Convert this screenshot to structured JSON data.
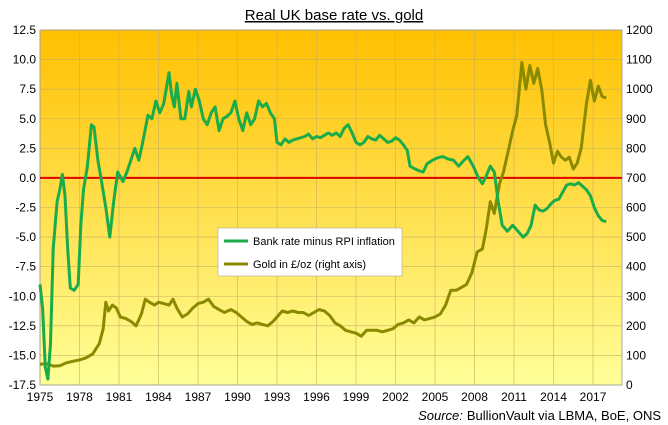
{
  "chart_data": {
    "type": "line",
    "title": "Real UK base rate vs. gold",
    "source_label": "Source:",
    "source_text": "BullionVault via LBMA, BoE, ONS",
    "x_ticks": [
      "1975",
      "1978",
      "1981",
      "1984",
      "1987",
      "1990",
      "1993",
      "1996",
      "1999",
      "2002",
      "2005",
      "2008",
      "2011",
      "2014",
      "2017"
    ],
    "xlim": [
      1975,
      2019.2
    ],
    "y_left": {
      "ticks": [
        "12.5",
        "10.0",
        "7.5",
        "5.0",
        "2.5",
        "0.0",
        "-2.5",
        "-5.0",
        "-7.5",
        "-10.0",
        "-12.5",
        "-15.0",
        "-17.5"
      ],
      "ylim": [
        -17.5,
        12.5
      ]
    },
    "y_right": {
      "ticks": [
        "1200",
        "1100",
        "1000",
        "900",
        "800",
        "700",
        "600",
        "500",
        "400",
        "300",
        "200",
        "100",
        "0"
      ],
      "ylim": [
        0,
        1200
      ]
    },
    "reference_line": {
      "axis": "left",
      "value": 0,
      "color": "#e00000"
    },
    "background_gradient": [
      "#ffc000",
      "#ffff99"
    ],
    "legend_position": "center",
    "series": [
      {
        "name": "Bank rate minus RPI inflation",
        "axis": "left",
        "color": "#1aac4a",
        "points": [
          [
            1975.0,
            -9.0
          ],
          [
            1975.2,
            -11.0
          ],
          [
            1975.4,
            -16.0
          ],
          [
            1975.6,
            -17.0
          ],
          [
            1975.8,
            -14.0
          ],
          [
            1976.0,
            -6.0
          ],
          [
            1976.3,
            -2.0
          ],
          [
            1976.5,
            -1.0
          ],
          [
            1976.7,
            0.3
          ],
          [
            1976.9,
            -1.5
          ],
          [
            1977.1,
            -6.0
          ],
          [
            1977.3,
            -9.3
          ],
          [
            1977.6,
            -9.5
          ],
          [
            1977.9,
            -9.0
          ],
          [
            1978.1,
            -4.0
          ],
          [
            1978.3,
            -1.0
          ],
          [
            1978.6,
            1.0
          ],
          [
            1978.9,
            4.5
          ],
          [
            1979.1,
            4.3
          ],
          [
            1979.4,
            1.5
          ],
          [
            1979.7,
            -0.5
          ],
          [
            1980.0,
            -2.5
          ],
          [
            1980.3,
            -5.0
          ],
          [
            1980.6,
            -2.0
          ],
          [
            1980.9,
            0.5
          ],
          [
            1981.3,
            -0.3
          ],
          [
            1981.6,
            0.5
          ],
          [
            1981.9,
            1.5
          ],
          [
            1982.2,
            2.5
          ],
          [
            1982.5,
            1.5
          ],
          [
            1982.8,
            3.0
          ],
          [
            1983.2,
            5.3
          ],
          [
            1983.5,
            5.0
          ],
          [
            1983.8,
            6.5
          ],
          [
            1984.1,
            5.5
          ],
          [
            1984.4,
            6.3
          ],
          [
            1984.8,
            8.9
          ],
          [
            1985.0,
            7.0
          ],
          [
            1985.2,
            6.0
          ],
          [
            1985.4,
            8.0
          ],
          [
            1985.7,
            5.0
          ],
          [
            1986.0,
            5.0
          ],
          [
            1986.3,
            7.3
          ],
          [
            1986.5,
            6.0
          ],
          [
            1986.8,
            7.5
          ],
          [
            1987.1,
            6.5
          ],
          [
            1987.4,
            5.0
          ],
          [
            1987.7,
            4.5
          ],
          [
            1988.0,
            5.5
          ],
          [
            1988.3,
            6.0
          ],
          [
            1988.6,
            4.0
          ],
          [
            1988.9,
            5.0
          ],
          [
            1989.2,
            5.2
          ],
          [
            1989.5,
            5.5
          ],
          [
            1989.8,
            6.5
          ],
          [
            1990.1,
            5.0
          ],
          [
            1990.4,
            4.0
          ],
          [
            1990.7,
            5.5
          ],
          [
            1991.0,
            4.5
          ],
          [
            1991.3,
            5.0
          ],
          [
            1991.6,
            6.5
          ],
          [
            1991.9,
            6.0
          ],
          [
            1992.2,
            6.3
          ],
          [
            1992.5,
            5.5
          ],
          [
            1992.8,
            5.0
          ],
          [
            1993.0,
            3.0
          ],
          [
            1993.3,
            2.8
          ],
          [
            1993.6,
            3.3
          ],
          [
            1993.9,
            3.0
          ],
          [
            1994.2,
            3.2
          ],
          [
            1994.5,
            3.3
          ],
          [
            1994.8,
            3.4
          ],
          [
            1995.1,
            3.5
          ],
          [
            1995.4,
            3.7
          ],
          [
            1995.7,
            3.3
          ],
          [
            1996.0,
            3.5
          ],
          [
            1996.3,
            3.4
          ],
          [
            1996.6,
            3.6
          ],
          [
            1996.9,
            3.8
          ],
          [
            1997.2,
            3.6
          ],
          [
            1997.5,
            3.8
          ],
          [
            1997.8,
            3.5
          ],
          [
            1998.1,
            4.2
          ],
          [
            1998.4,
            4.5
          ],
          [
            1998.7,
            3.8
          ],
          [
            1999.0,
            3.0
          ],
          [
            1999.3,
            2.8
          ],
          [
            1999.6,
            3.0
          ],
          [
            1999.9,
            3.5
          ],
          [
            2000.2,
            3.3
          ],
          [
            2000.5,
            3.2
          ],
          [
            2000.8,
            3.6
          ],
          [
            2001.1,
            3.3
          ],
          [
            2001.4,
            3.0
          ],
          [
            2001.7,
            3.1
          ],
          [
            2002.0,
            3.4
          ],
          [
            2002.3,
            3.2
          ],
          [
            2002.6,
            2.8
          ],
          [
            2002.9,
            2.3
          ],
          [
            2003.1,
            1.0
          ],
          [
            2003.4,
            0.8
          ],
          [
            2003.8,
            0.6
          ],
          [
            2004.1,
            0.5
          ],
          [
            2004.4,
            1.2
          ],
          [
            2004.8,
            1.5
          ],
          [
            2005.2,
            1.7
          ],
          [
            2005.6,
            1.8
          ],
          [
            2006.0,
            1.6
          ],
          [
            2006.4,
            1.5
          ],
          [
            2006.8,
            1.0
          ],
          [
            2007.2,
            1.5
          ],
          [
            2007.5,
            1.8
          ],
          [
            2007.9,
            1.0
          ],
          [
            2008.3,
            0.0
          ],
          [
            2008.6,
            -0.5
          ],
          [
            2008.9,
            0.2
          ],
          [
            2009.2,
            1.0
          ],
          [
            2009.5,
            0.5
          ],
          [
            2009.8,
            -2.0
          ],
          [
            2010.1,
            -4.0
          ],
          [
            2010.5,
            -4.5
          ],
          [
            2010.9,
            -4.0
          ],
          [
            2011.3,
            -4.5
          ],
          [
            2011.7,
            -5.0
          ],
          [
            2012.0,
            -4.7
          ],
          [
            2012.3,
            -4.0
          ],
          [
            2012.6,
            -2.3
          ],
          [
            2012.9,
            -2.7
          ],
          [
            2013.2,
            -2.8
          ],
          [
            2013.5,
            -2.6
          ],
          [
            2013.8,
            -2.2
          ],
          [
            2014.1,
            -1.9
          ],
          [
            2014.4,
            -1.8
          ],
          [
            2014.7,
            -1.2
          ],
          [
            2015.0,
            -0.6
          ],
          [
            2015.3,
            -0.5
          ],
          [
            2015.6,
            -0.6
          ],
          [
            2015.9,
            -0.4
          ],
          [
            2016.2,
            -0.7
          ],
          [
            2016.5,
            -1.0
          ],
          [
            2016.8,
            -1.5
          ],
          [
            2017.1,
            -2.5
          ],
          [
            2017.4,
            -3.2
          ],
          [
            2017.7,
            -3.6
          ],
          [
            2018.0,
            -3.7
          ]
        ]
      },
      {
        "name": "Gold in £/oz (right axis)",
        "axis": "right",
        "color": "#8a8a00",
        "points": [
          [
            1975.0,
            70
          ],
          [
            1975.5,
            72
          ],
          [
            1976.0,
            64
          ],
          [
            1976.5,
            65
          ],
          [
            1977.0,
            75
          ],
          [
            1977.5,
            80
          ],
          [
            1978.0,
            85
          ],
          [
            1978.5,
            92
          ],
          [
            1979.0,
            105
          ],
          [
            1979.5,
            140
          ],
          [
            1979.8,
            190
          ],
          [
            1980.0,
            280
          ],
          [
            1980.2,
            250
          ],
          [
            1980.5,
            270
          ],
          [
            1980.8,
            260
          ],
          [
            1981.1,
            230
          ],
          [
            1981.5,
            225
          ],
          [
            1981.9,
            215
          ],
          [
            1982.3,
            200
          ],
          [
            1982.7,
            240
          ],
          [
            1983.0,
            290
          ],
          [
            1983.3,
            280
          ],
          [
            1983.7,
            270
          ],
          [
            1984.0,
            280
          ],
          [
            1984.4,
            275
          ],
          [
            1984.8,
            270
          ],
          [
            1985.1,
            290
          ],
          [
            1985.4,
            260
          ],
          [
            1985.8,
            230
          ],
          [
            1986.2,
            240
          ],
          [
            1986.6,
            260
          ],
          [
            1987.0,
            275
          ],
          [
            1987.4,
            280
          ],
          [
            1987.8,
            290
          ],
          [
            1988.2,
            265
          ],
          [
            1988.6,
            255
          ],
          [
            1989.0,
            245
          ],
          [
            1989.5,
            255
          ],
          [
            1989.9,
            245
          ],
          [
            1990.3,
            230
          ],
          [
            1990.7,
            215
          ],
          [
            1991.1,
            205
          ],
          [
            1991.5,
            210
          ],
          [
            1991.9,
            205
          ],
          [
            1992.3,
            200
          ],
          [
            1992.7,
            215
          ],
          [
            1993.0,
            230
          ],
          [
            1993.4,
            250
          ],
          [
            1993.8,
            245
          ],
          [
            1994.2,
            250
          ],
          [
            1994.6,
            245
          ],
          [
            1995.0,
            245
          ],
          [
            1995.4,
            235
          ],
          [
            1995.8,
            245
          ],
          [
            1996.2,
            255
          ],
          [
            1996.6,
            250
          ],
          [
            1997.0,
            235
          ],
          [
            1997.4,
            210
          ],
          [
            1997.8,
            200
          ],
          [
            1998.2,
            185
          ],
          [
            1998.6,
            180
          ],
          [
            1999.0,
            175
          ],
          [
            1999.4,
            165
          ],
          [
            1999.8,
            185
          ],
          [
            2000.2,
            185
          ],
          [
            2000.6,
            185
          ],
          [
            2001.0,
            180
          ],
          [
            2001.4,
            185
          ],
          [
            2001.8,
            190
          ],
          [
            2002.2,
            205
          ],
          [
            2002.6,
            210
          ],
          [
            2003.0,
            220
          ],
          [
            2003.4,
            210
          ],
          [
            2003.8,
            230
          ],
          [
            2004.2,
            220
          ],
          [
            2004.6,
            225
          ],
          [
            2005.0,
            230
          ],
          [
            2005.4,
            240
          ],
          [
            2005.8,
            270
          ],
          [
            2006.2,
            320
          ],
          [
            2006.6,
            320
          ],
          [
            2007.0,
            330
          ],
          [
            2007.4,
            340
          ],
          [
            2007.8,
            380
          ],
          [
            2008.2,
            450
          ],
          [
            2008.6,
            460
          ],
          [
            2008.9,
            530
          ],
          [
            2009.2,
            620
          ],
          [
            2009.5,
            580
          ],
          [
            2009.9,
            680
          ],
          [
            2010.2,
            720
          ],
          [
            2010.6,
            800
          ],
          [
            2010.9,
            860
          ],
          [
            2011.2,
            910
          ],
          [
            2011.6,
            1090
          ],
          [
            2011.9,
            1000
          ],
          [
            2012.2,
            1080
          ],
          [
            2012.5,
            1020
          ],
          [
            2012.8,
            1070
          ],
          [
            2013.1,
            1000
          ],
          [
            2013.4,
            880
          ],
          [
            2013.7,
            820
          ],
          [
            2014.0,
            750
          ],
          [
            2014.3,
            790
          ],
          [
            2014.6,
            770
          ],
          [
            2014.9,
            760
          ],
          [
            2015.2,
            770
          ],
          [
            2015.5,
            730
          ],
          [
            2015.8,
            750
          ],
          [
            2016.1,
            800
          ],
          [
            2016.5,
            950
          ],
          [
            2016.8,
            1030
          ],
          [
            2017.1,
            960
          ],
          [
            2017.4,
            1010
          ],
          [
            2017.7,
            975
          ],
          [
            2018.0,
            970
          ]
        ]
      }
    ]
  }
}
